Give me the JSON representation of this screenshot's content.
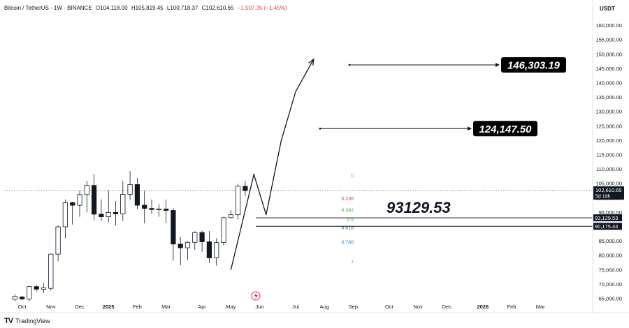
{
  "header": {
    "symbol": "Bitcoin / TetherUS · 1W · BINANCE",
    "open": "O104,118.00",
    "high": "H105,819.45",
    "low": "L100,718.37",
    "close": "C102,610.65",
    "change": "−1,507.35 (−1.45%)"
  },
  "currency_label": "USDT",
  "brand": {
    "logo": "TV",
    "name": "TradingView"
  },
  "last_price": {
    "value": "102,610.65",
    "countdown": "5d 19h"
  },
  "level_labels": [
    {
      "value": 93129.53,
      "text": "93,129.53"
    },
    {
      "value": 90175.44,
      "text": "90,175.44"
    }
  ],
  "targets": [
    {
      "value": 146303.19,
      "text": "146,303.19"
    },
    {
      "value": 124147.5,
      "text": "124,147.50"
    }
  ],
  "big_label": "93129.53",
  "fib_levels": [
    {
      "label": "0",
      "value": 107800,
      "color": "#9598a1"
    },
    {
      "label": "0.236",
      "value": 99800,
      "color": "#f23645"
    },
    {
      "label": "0.382",
      "value": 95800,
      "color": "#4caf50"
    },
    {
      "label": "0.5",
      "value": 92600,
      "color": "#4caf50"
    },
    {
      "label": "0.618",
      "value": 89700,
      "color": "#00897b"
    },
    {
      "label": "0.786",
      "value": 84700,
      "color": "#2196f3"
    },
    {
      "label": "1",
      "value": 78000,
      "color": "#9598a1"
    }
  ],
  "chart_data": {
    "type": "candlestick",
    "y_axis": {
      "min": 64000,
      "max": 162000,
      "ticks": [
        65000,
        70000,
        75000,
        80000,
        85000,
        90000,
        95000,
        100000,
        105000,
        110000,
        115000,
        120000,
        125000,
        130000,
        135000,
        140000,
        145000,
        150000,
        155000,
        160000
      ]
    },
    "x_ticks": [
      {
        "label": "Oct",
        "week": 1,
        "bold": false
      },
      {
        "label": "Nov",
        "week": 5,
        "bold": false
      },
      {
        "label": "Dec",
        "week": 9,
        "bold": false
      },
      {
        "label": "2025",
        "week": 13,
        "bold": true
      },
      {
        "label": "Feb",
        "week": 17,
        "bold": false
      },
      {
        "label": "Mar",
        "week": 21,
        "bold": false
      },
      {
        "label": "Apr",
        "week": 26,
        "bold": false
      },
      {
        "label": "May",
        "week": 30,
        "bold": false
      },
      {
        "label": "Jun",
        "week": 34,
        "bold": false
      },
      {
        "label": "Jul",
        "week": 39,
        "bold": false
      },
      {
        "label": "Aug",
        "week": 43,
        "bold": false
      },
      {
        "label": "Sep",
        "week": 47,
        "bold": false
      },
      {
        "label": "Oct",
        "week": 52,
        "bold": false
      },
      {
        "label": "Nov",
        "week": 56,
        "bold": false
      },
      {
        "label": "Dec",
        "week": 60,
        "bold": false
      },
      {
        "label": "2026",
        "week": 65,
        "bold": true
      },
      {
        "label": "Feb",
        "week": 69,
        "bold": false
      },
      {
        "label": "Mar",
        "week": 73,
        "bold": false
      }
    ],
    "candles": [
      {
        "o": 64800,
        "h": 66500,
        "l": 64000,
        "c": 65800
      },
      {
        "o": 65600,
        "h": 66000,
        "l": 64500,
        "c": 64900
      },
      {
        "o": 64900,
        "h": 69500,
        "l": 64000,
        "c": 69200
      },
      {
        "o": 69200,
        "h": 69800,
        "l": 67500,
        "c": 68300
      },
      {
        "o": 68300,
        "h": 70500,
        "l": 67000,
        "c": 68800
      },
      {
        "o": 68600,
        "h": 80000,
        "l": 67800,
        "c": 80500
      },
      {
        "o": 80500,
        "h": 90500,
        "l": 78000,
        "c": 90000
      },
      {
        "o": 90000,
        "h": 99500,
        "l": 86000,
        "c": 98400
      },
      {
        "o": 98400,
        "h": 98700,
        "l": 90800,
        "c": 97500
      },
      {
        "o": 97500,
        "h": 102500,
        "l": 93500,
        "c": 101200
      },
      {
        "o": 101200,
        "h": 106000,
        "l": 95000,
        "c": 104400
      },
      {
        "o": 104400,
        "h": 108300,
        "l": 92200,
        "c": 94400
      },
      {
        "o": 94400,
        "h": 99500,
        "l": 92000,
        "c": 93500
      },
      {
        "o": 93500,
        "h": 102700,
        "l": 91500,
        "c": 95000
      },
      {
        "o": 95000,
        "h": 99000,
        "l": 90500,
        "c": 94500
      },
      {
        "o": 94500,
        "h": 105900,
        "l": 92000,
        "c": 101300
      },
      {
        "o": 101300,
        "h": 109400,
        "l": 99500,
        "c": 104700
      },
      {
        "o": 104700,
        "h": 107000,
        "l": 96000,
        "c": 97500
      },
      {
        "o": 97500,
        "h": 102500,
        "l": 91200,
        "c": 96400
      },
      {
        "o": 96400,
        "h": 99500,
        "l": 94500,
        "c": 96000
      },
      {
        "o": 96000,
        "h": 98000,
        "l": 93500,
        "c": 96200
      },
      {
        "o": 96200,
        "h": 99500,
        "l": 91200,
        "c": 95700
      },
      {
        "o": 95700,
        "h": 96500,
        "l": 78200,
        "c": 84000
      },
      {
        "o": 84000,
        "h": 86500,
        "l": 76600,
        "c": 82700
      },
      {
        "o": 82700,
        "h": 85000,
        "l": 78500,
        "c": 84600
      },
      {
        "o": 84600,
        "h": 88500,
        "l": 82000,
        "c": 88000
      },
      {
        "o": 88000,
        "h": 88700,
        "l": 81300,
        "c": 84800
      },
      {
        "o": 84800,
        "h": 88500,
        "l": 77400,
        "c": 79200
      },
      {
        "o": 79200,
        "h": 86000,
        "l": 76500,
        "c": 84500
      },
      {
        "o": 84500,
        "h": 93500,
        "l": 83500,
        "c": 93200
      },
      {
        "o": 93200,
        "h": 95800,
        "l": 92800,
        "c": 94200
      },
      {
        "o": 94200,
        "h": 105000,
        "l": 92500,
        "c": 104100
      },
      {
        "o": 104100,
        "h": 105800,
        "l": 100700,
        "c": 102600
      }
    ],
    "projection_path": [
      {
        "w": 30.0,
        "v": 75000
      },
      {
        "w": 33.2,
        "v": 108200
      },
      {
        "w": 34.9,
        "v": 94200
      },
      {
        "w": 37.0,
        "v": 120000
      },
      {
        "w": 39.0,
        "v": 137000
      },
      {
        "w": 41.5,
        "v": 148300
      }
    ]
  }
}
